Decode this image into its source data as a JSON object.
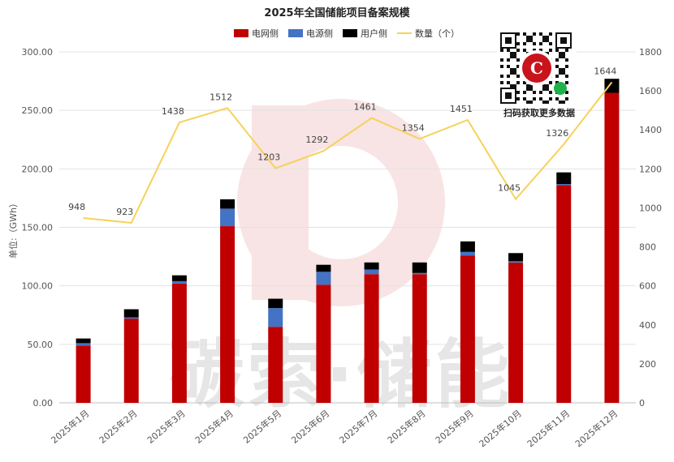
{
  "chart_data": {
    "type": "bar",
    "title": "2025年全国储能项目备案规模",
    "ylabel": "单位:（GWh）",
    "ylim": [
      0,
      300
    ],
    "y2lim": [
      0,
      1800
    ],
    "yticks": [
      "0.00",
      "50.00",
      "100.00",
      "150.00",
      "200.00",
      "250.00",
      "300.00"
    ],
    "y2ticks": [
      "0",
      "200",
      "400",
      "600",
      "800",
      "1000",
      "1200",
      "1400",
      "1600",
      "1800"
    ],
    "legend_position": "top-center",
    "categories": [
      "2025年1月",
      "2025年2月",
      "2025年3月",
      "2025年4月",
      "2025年5月",
      "2025年6月",
      "2025年7月",
      "2025年8月",
      "2025年9月",
      "2025年10月",
      "2025年11月",
      "2025年12月"
    ],
    "series": [
      {
        "name": "电网侧",
        "type": "bar",
        "stack": "s",
        "color": "#c00000",
        "values": [
          49,
          72,
          102,
          151,
          65,
          101,
          110,
          110,
          126,
          120,
          186,
          265
        ]
      },
      {
        "name": "电源侧",
        "type": "bar",
        "stack": "s",
        "color": "#4472c4",
        "values": [
          2,
          1,
          2,
          15,
          16,
          11,
          4,
          1,
          3,
          1,
          1,
          0
        ]
      },
      {
        "name": "用户侧",
        "type": "bar",
        "stack": "s",
        "color": "#000000",
        "values": [
          4,
          7,
          5,
          8,
          8,
          6,
          6,
          9,
          9,
          7,
          10,
          12
        ]
      },
      {
        "name": "数量（个）",
        "type": "line",
        "axis": "right",
        "color": "#f5d25a",
        "values": [
          948,
          923,
          1438,
          1512,
          1203,
          1292,
          1461,
          1354,
          1451,
          1045,
          1326,
          1644
        ]
      }
    ],
    "line_labels": [
      "948",
      "923",
      "1438",
      "1512",
      "1203",
      "1292",
      "1461",
      "1354",
      "1451",
      "1045",
      "1326",
      "1644"
    ]
  },
  "watermark": {
    "text": "碳索·储能"
  },
  "qr": {
    "caption": "扫码获取更多数据",
    "logo_letter": "C"
  }
}
